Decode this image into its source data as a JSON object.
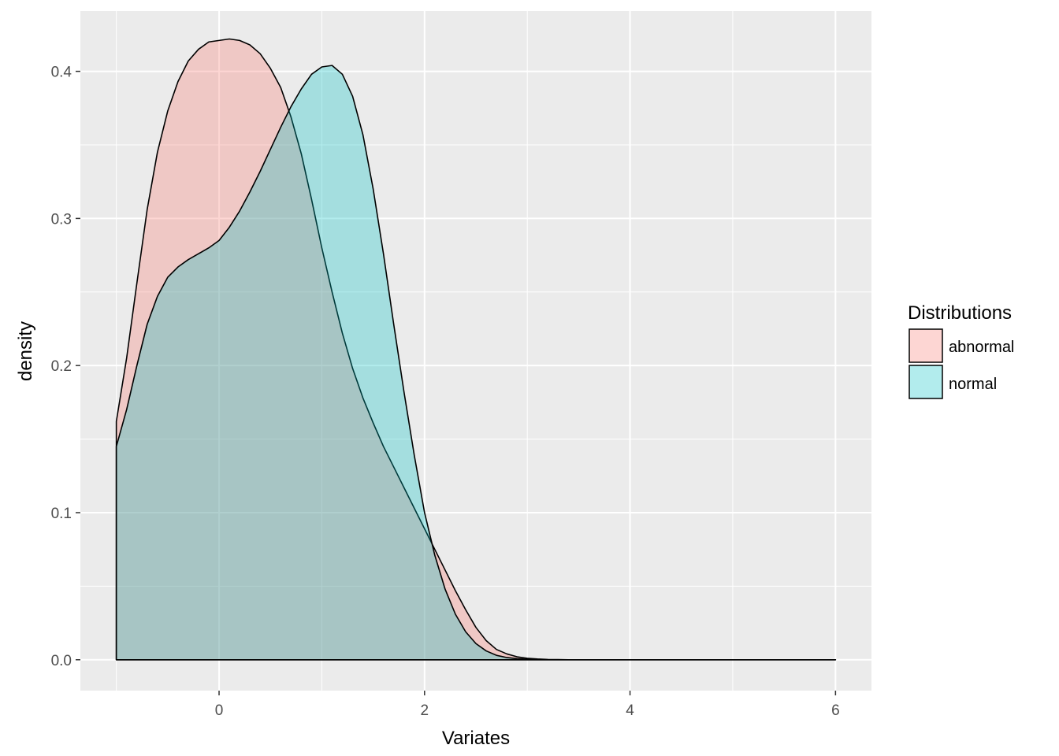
{
  "chart_data": {
    "type": "area",
    "subtype": "density",
    "title": "",
    "xlabel": "Variates",
    "ylabel": "density",
    "xlim": [
      -1.35,
      6.35
    ],
    "ylim": [
      -0.021,
      0.441
    ],
    "x_ticks": [
      0,
      2,
      4,
      6
    ],
    "x_tick_labels": [
      "0",
      "2",
      "4",
      "6"
    ],
    "y_ticks": [
      0.0,
      0.1,
      0.2,
      0.3,
      0.4
    ],
    "y_tick_labels": [
      "0.0",
      "0.1",
      "0.2",
      "0.3",
      "0.4"
    ],
    "grid": true,
    "panel_background": "#ebebeb",
    "grid_color": "#ffffff",
    "legend": {
      "title": "Distributions",
      "position": "right"
    },
    "series": [
      {
        "name": "abnormal",
        "fill": "#f8766d",
        "fill_opacity": 0.3,
        "x": [
          -1.0,
          -0.9,
          -0.8,
          -0.7,
          -0.6,
          -0.5,
          -0.4,
          -0.3,
          -0.2,
          -0.1,
          0.0,
          0.1,
          0.2,
          0.3,
          0.4,
          0.5,
          0.6,
          0.7,
          0.8,
          0.9,
          1.0,
          1.1,
          1.2,
          1.3,
          1.4,
          1.5,
          1.6,
          1.7,
          1.8,
          1.9,
          2.0,
          2.1,
          2.2,
          2.3,
          2.4,
          2.5,
          2.6,
          2.7,
          2.8,
          2.9,
          3.0,
          3.1,
          3.2,
          3.3,
          3.4,
          3.5,
          4.0,
          4.5,
          5.0,
          5.5,
          6.0
        ],
        "values": [
          0.162,
          0.205,
          0.256,
          0.306,
          0.345,
          0.373,
          0.393,
          0.407,
          0.415,
          0.42,
          0.421,
          0.422,
          0.421,
          0.418,
          0.412,
          0.402,
          0.389,
          0.369,
          0.344,
          0.313,
          0.28,
          0.25,
          0.222,
          0.198,
          0.178,
          0.161,
          0.145,
          0.131,
          0.117,
          0.103,
          0.089,
          0.075,
          0.061,
          0.047,
          0.034,
          0.022,
          0.013,
          0.007,
          0.004,
          0.002,
          0.001,
          0.0005,
          0.0002,
          0.0001,
          0.0,
          0.0,
          0.0,
          0.0,
          0.0,
          0.0,
          0.0
        ]
      },
      {
        "name": "normal",
        "fill": "#00bfc4",
        "fill_opacity": 0.3,
        "x": [
          -1.0,
          -0.9,
          -0.8,
          -0.7,
          -0.6,
          -0.5,
          -0.4,
          -0.3,
          -0.2,
          -0.1,
          0.0,
          0.1,
          0.2,
          0.3,
          0.4,
          0.5,
          0.6,
          0.7,
          0.8,
          0.9,
          1.0,
          1.1,
          1.2,
          1.3,
          1.4,
          1.5,
          1.6,
          1.7,
          1.8,
          1.9,
          2.0,
          2.1,
          2.2,
          2.3,
          2.4,
          2.5,
          2.6,
          2.7,
          2.8,
          2.9,
          3.0,
          3.1,
          3.2,
          3.3,
          3.4,
          3.5,
          4.0,
          4.5,
          5.0,
          5.5,
          6.0
        ],
        "values": [
          0.145,
          0.17,
          0.2,
          0.228,
          0.247,
          0.26,
          0.267,
          0.272,
          0.276,
          0.28,
          0.285,
          0.294,
          0.305,
          0.318,
          0.332,
          0.347,
          0.362,
          0.376,
          0.388,
          0.398,
          0.403,
          0.404,
          0.398,
          0.383,
          0.357,
          0.32,
          0.276,
          0.228,
          0.182,
          0.139,
          0.1,
          0.071,
          0.048,
          0.031,
          0.019,
          0.011,
          0.006,
          0.003,
          0.0015,
          0.0007,
          0.0003,
          0.0001,
          0.0,
          0.0,
          0.0,
          0.0,
          0.0,
          0.0,
          0.0,
          0.0,
          0.0
        ]
      }
    ]
  }
}
